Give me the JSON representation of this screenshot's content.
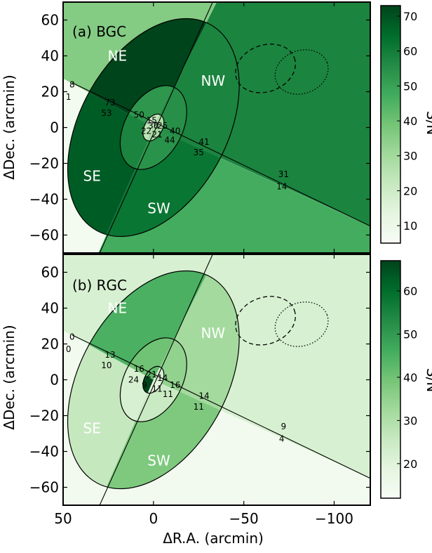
{
  "chart_data": {
    "type": "heatmap",
    "xlabel": "ΔR.A. (arcmin)",
    "ylabel": "ΔDec. (arcmin)",
    "colorbar_label": "S/N",
    "xlim": [
      50,
      -120
    ],
    "ylim": [
      -70,
      70
    ],
    "x_ticks": [
      50,
      0,
      -50,
      -100
    ],
    "y_ticks": [
      -60,
      -40,
      -20,
      0,
      20,
      40,
      60
    ],
    "x_tick_labels": [
      "50",
      "0",
      "−50",
      "−100"
    ],
    "y_tick_labels": [
      "−60",
      "−40",
      "−20",
      "0",
      "20",
      "40",
      "60"
    ],
    "colormap": [
      "#f7fcf5",
      "#e5f5e0",
      "#c7e9c0",
      "#a1d99b",
      "#74c476",
      "#41ab5d",
      "#238b45",
      "#006d2c",
      "#00441b"
    ],
    "region_names": [
      "NE",
      "NW",
      "SE",
      "SW"
    ],
    "geometry": {
      "center": [
        0,
        0
      ],
      "outer_ellipse": {
        "semi_major": 65,
        "semi_minor": 41,
        "angle_deg": 61
      },
      "middle_ellipse": {
        "semi_major": 25,
        "semi_minor": 16,
        "angle_deg": 61
      },
      "inner_ellipse": {
        "semi_major": 8,
        "semi_minor": 5,
        "angle_deg": 61
      },
      "divider_line_1": [
        [
          45,
          25
        ],
        [
          -120,
          -55
        ]
      ],
      "divider_line_2": [
        [
          32,
          -75
        ],
        [
          -35,
          75
        ]
      ],
      "dashed_ellipse": {
        "center": [
          -62,
          33
        ],
        "semi_major": 17,
        "semi_minor": 13,
        "angle_deg": 20
      },
      "dotted_ellipse": {
        "center": [
          -82,
          31
        ],
        "semi_major": 15,
        "semi_minor": 12,
        "angle_deg": 20
      }
    },
    "panels": [
      {
        "title": "(a) BGC",
        "colorbar_range": [
          5,
          73
        ],
        "colorbar_ticks": [
          10,
          20,
          30,
          40,
          50,
          60,
          70
        ],
        "regions": {
          "bg_NE": 36,
          "bg_NW": 58,
          "bg_SW": 47,
          "bg_SE": 7,
          "outer_NE": 73,
          "outer_NW": 58,
          "outer_SW": 62,
          "outer_SE": 68,
          "middle_NE": 53,
          "middle_NW": 55,
          "middle_SW": 54,
          "middle_SE": 58,
          "inner_NE": 22,
          "inner_NW": 28,
          "inner_SW": 28,
          "inner_SE": 24
        },
        "sn_labels": [
          {
            "text": "8",
            "x": 45,
            "y": 24
          },
          {
            "text": "1",
            "x": 47,
            "y": 17
          },
          {
            "text": "73",
            "x": 24,
            "y": 14
          },
          {
            "text": "53",
            "x": 26,
            "y": 8
          },
          {
            "text": "50",
            "x": 8,
            "y": 7
          },
          {
            "text": "15",
            "x": 1,
            "y": 4
          },
          {
            "text": "36",
            "x": 0,
            "y": 1
          },
          {
            "text": "25",
            "x": -5,
            "y": 1
          },
          {
            "text": "22",
            "x": 4,
            "y": -2
          },
          {
            "text": "40",
            "x": -12,
            "y": -2
          },
          {
            "text": "21",
            "x": -2,
            "y": -4
          },
          {
            "text": "44",
            "x": -9,
            "y": -7
          },
          {
            "text": "41",
            "x": -28,
            "y": -8
          },
          {
            "text": "35",
            "x": -25,
            "y": -14
          },
          {
            "text": "31",
            "x": -72,
            "y": -26
          },
          {
            "text": "14",
            "x": -71,
            "y": -33
          }
        ]
      },
      {
        "title": "(b) RGC",
        "colorbar_range": [
          12,
          67
        ],
        "colorbar_ticks": [
          20,
          30,
          40,
          50,
          60
        ],
        "regions": {
          "bg_NE": 22,
          "bg_NW": 22,
          "bg_SW": 14,
          "bg_SE": 14,
          "outer_NE": 45,
          "outer_NW": 32,
          "outer_SW": 38,
          "outer_SE": 26,
          "middle_NE": 40,
          "middle_NW": 35,
          "middle_SW": 25,
          "middle_SE": 22,
          "inner_NE": 42,
          "inner_NW": 22,
          "inner_SW": 18,
          "inner_SE": 67
        },
        "sn_labels": [
          {
            "text": "0",
            "x": 45,
            "y": 24
          },
          {
            "text": "0",
            "x": 47,
            "y": 17
          },
          {
            "text": "13",
            "x": 24,
            "y": 14
          },
          {
            "text": "10",
            "x": 26,
            "y": 8
          },
          {
            "text": "16",
            "x": 8,
            "y": 6
          },
          {
            "text": "21",
            "x": 1,
            "y": 3
          },
          {
            "text": "14",
            "x": -5,
            "y": 1
          },
          {
            "text": "24",
            "x": 11,
            "y": 0
          },
          {
            "text": "9",
            "x": 5,
            "y": -3
          },
          {
            "text": "16",
            "x": -12,
            "y": -3
          },
          {
            "text": "11",
            "x": -2,
            "y": -5
          },
          {
            "text": "11",
            "x": -8,
            "y": -8
          },
          {
            "text": "14",
            "x": -28,
            "y": -9
          },
          {
            "text": "11",
            "x": -25,
            "y": -15
          },
          {
            "text": "9",
            "x": -72,
            "y": -26
          },
          {
            "text": "4",
            "x": -71,
            "y": -33
          }
        ]
      }
    ]
  }
}
